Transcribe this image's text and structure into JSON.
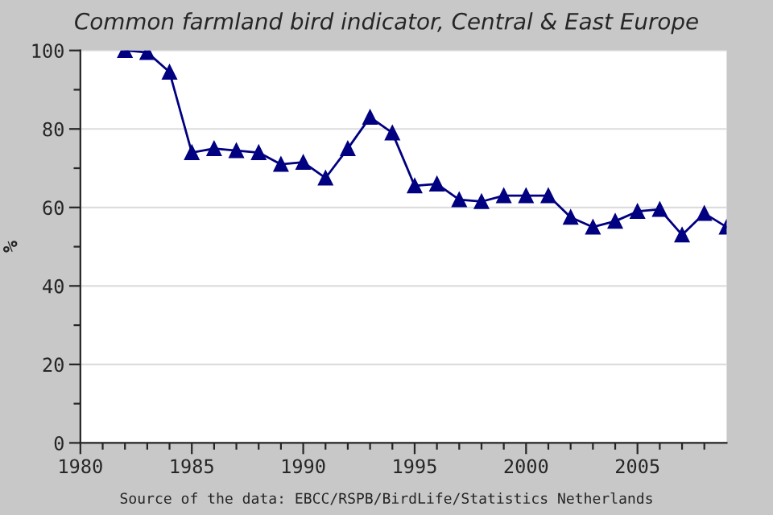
{
  "chart_data": {
    "type": "line",
    "title": "Common farmland bird indicator, Central & East Europe",
    "ylabel": "%",
    "annotations": [
      "Source of the data: EBCC/RSPB/BirdLife/Statistics Netherlands"
    ],
    "x": [
      1982,
      1983,
      1984,
      1985,
      1986,
      1987,
      1988,
      1989,
      1990,
      1991,
      1992,
      1993,
      1994,
      1995,
      1996,
      1997,
      1998,
      1999,
      2000,
      2001,
      2002,
      2003,
      2004,
      2005,
      2006,
      2007,
      2008,
      2009
    ],
    "series": [
      {
        "color": "#000080",
        "values": [
          100,
          99.5,
          94.5,
          74,
          75,
          74.5,
          74,
          71,
          71.5,
          67.5,
          75,
          83,
          79,
          65.5,
          66,
          62,
          61.5,
          63,
          63,
          63,
          57.5,
          55,
          56.5,
          59,
          59.5,
          53,
          58.5,
          55
        ]
      }
    ],
    "marker": "triangle",
    "line_style": "solid",
    "grid": "y",
    "legend": false,
    "xlim": [
      1980,
      2009
    ],
    "ylim": [
      0,
      100
    ],
    "xticks": [
      1980,
      {
        "value": 1981,
        "label": null
      },
      {
        "value": 1982,
        "label": null
      },
      {
        "value": 1983,
        "label": null
      },
      {
        "value": 1984,
        "label": null
      },
      1985,
      {
        "value": 1986,
        "label": null
      },
      {
        "value": 1987,
        "label": null
      },
      {
        "value": 1988,
        "label": null
      },
      {
        "value": 1989,
        "label": null
      },
      1990,
      {
        "value": 1991,
        "label": null
      },
      {
        "value": 1992,
        "label": null
      },
      {
        "value": 1993,
        "label": null
      },
      {
        "value": 1994,
        "label": null
      },
      1995,
      {
        "value": 1996,
        "label": null
      },
      {
        "value": 1997,
        "label": null
      },
      {
        "value": 1998,
        "label": null
      },
      {
        "value": 1999,
        "label": null
      },
      2000,
      {
        "value": 2001,
        "label": null
      },
      {
        "value": 2002,
        "label": null
      },
      {
        "value": 2003,
        "label": null
      },
      {
        "value": 2004,
        "label": null
      },
      2005,
      {
        "value": 2006,
        "label": null
      },
      {
        "value": 2007,
        "label": null
      },
      {
        "value": 2008,
        "label": null
      }
    ],
    "yticks": [
      0,
      {
        "value": 10,
        "label": null
      },
      20,
      {
        "value": 30,
        "label": null
      },
      40,
      {
        "value": 50,
        "label": null
      },
      60,
      {
        "value": 70,
        "label": null
      },
      80,
      {
        "value": 90,
        "label": null
      },
      100
    ]
  }
}
